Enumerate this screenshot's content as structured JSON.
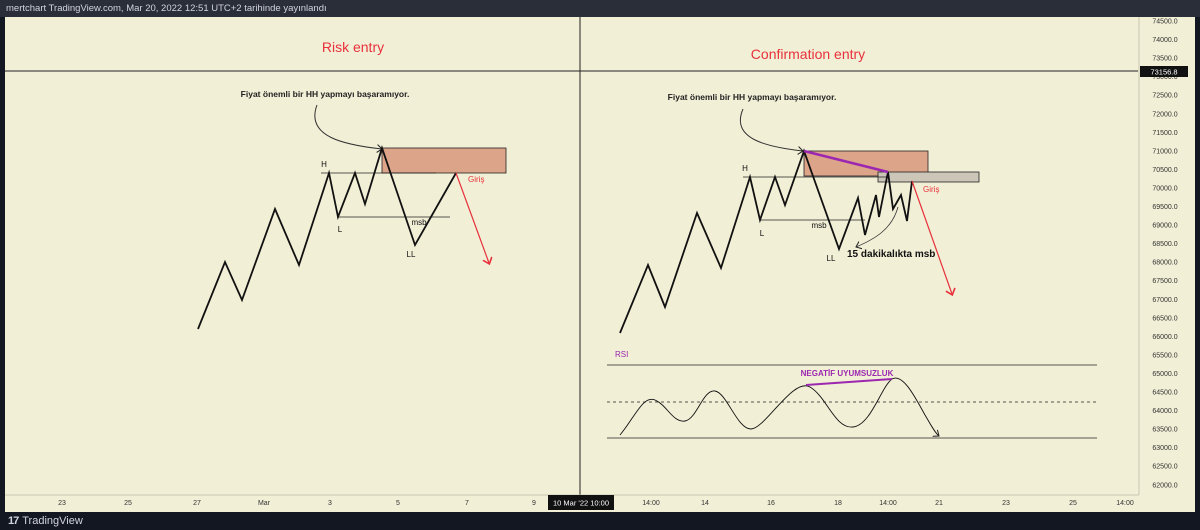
{
  "header": {
    "text": "mertchart TradingView.com, Mar 20, 2022 12:51 UTC+2 tarihinde yayınlandı"
  },
  "footer": {
    "brand": "TradingView",
    "logo_icon": "tradingview-logo-icon"
  },
  "colors": {
    "background": "#f1efd6",
    "red_text": "#e8313b",
    "purple": "#9c27b0",
    "risk_fill": "#dca58a"
  },
  "left_panel": {
    "title": "Risk entry",
    "annotation": "Fiyat önemli bir HH yapmayı başaramıyor.",
    "labels": {
      "h": "H",
      "l": "L",
      "ll": "LL",
      "msb": "msb",
      "giris": "Giriş"
    }
  },
  "right_panel": {
    "title": "Confirmation entry",
    "annotation": "Fiyat önemli bir HH yapmayı başaramıyor.",
    "labels": {
      "h": "H",
      "l": "L",
      "ll": "LL",
      "msb": "msb",
      "msb_15m": "15 dakikalıkta msb",
      "giris": "Giriş"
    },
    "rsi": {
      "label": "RSI",
      "divergence": "NEGATİF UYUMSUZLUK"
    }
  },
  "price_axis": {
    "ticks": [
      "74500.0",
      "74000.0",
      "73500.0",
      "73000.0",
      "72500.0",
      "72000.0",
      "71500.0",
      "71000.0",
      "70500.0",
      "70000.0",
      "69500.0",
      "69000.0",
      "68500.0",
      "68000.0",
      "67500.0",
      "67000.0",
      "66500.0",
      "66000.0",
      "65500.0",
      "65000.0",
      "64500.0",
      "64000.0",
      "63500.0",
      "63000.0",
      "62500.0",
      "62000.0"
    ],
    "current_price": "73156.8"
  },
  "time_axis": {
    "ticks": [
      "23",
      "25",
      "27",
      "Mar",
      "3",
      "5",
      "7",
      "9",
      "14:00",
      "14",
      "16",
      "18",
      "14:00",
      "21",
      "23",
      "25",
      "14:00"
    ],
    "cursor_label": "10 Mar '22   10:00"
  }
}
